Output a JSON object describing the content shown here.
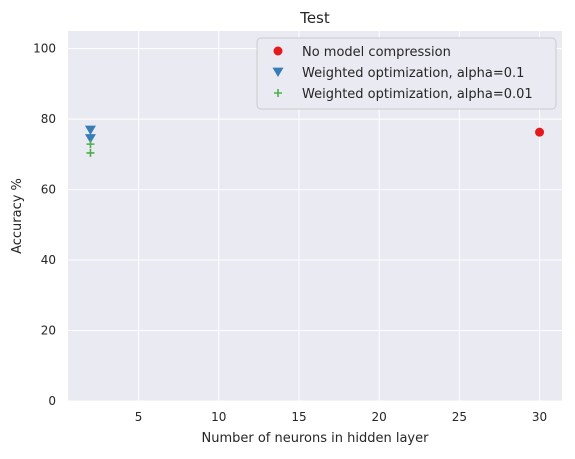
{
  "chart_data": {
    "type": "scatter",
    "title": "Test",
    "xlabel": "Number of neurons in hidden layer",
    "ylabel": "Accuracy %",
    "xlim": [
      0.6,
      31.4
    ],
    "ylim": [
      0,
      105
    ],
    "xticks": [
      5,
      10,
      15,
      20,
      25,
      30
    ],
    "yticks": [
      0,
      20,
      40,
      60,
      80,
      100
    ],
    "grid": true,
    "legend_position": "top-right",
    "series": [
      {
        "name": "No model compression",
        "marker": "circle",
        "color": "#e41a1c",
        "points": [
          [
            30,
            76.3
          ]
        ]
      },
      {
        "name": "Weighted optimization, alpha=0.1",
        "marker": "triangle-down",
        "color": "#377eb8",
        "points": [
          [
            2,
            76.9
          ],
          [
            2,
            74.5
          ]
        ]
      },
      {
        "name": "Weighted optimization, alpha=0.01",
        "marker": "plus",
        "color": "#4daf4a",
        "points": [
          [
            2,
            72.9
          ],
          [
            2,
            70.4
          ]
        ]
      }
    ]
  }
}
